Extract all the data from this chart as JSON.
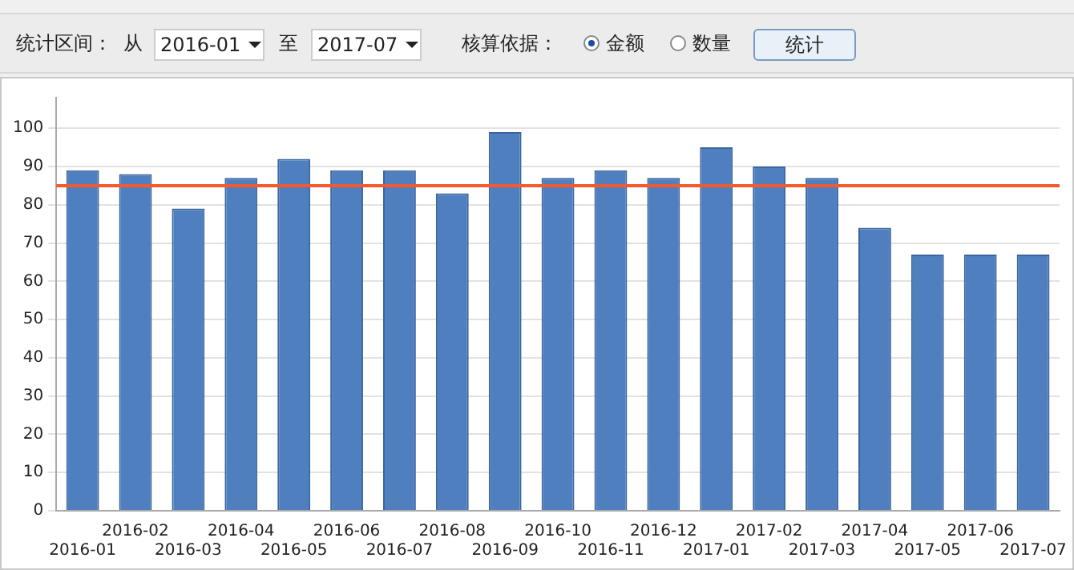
{
  "chart_data": {
    "type": "bar",
    "categories": [
      "2016-01",
      "2016-02",
      "2016-03",
      "2016-04",
      "2016-05",
      "2016-06",
      "2016-07",
      "2016-08",
      "2016-09",
      "2016-10",
      "2016-11",
      "2016-12",
      "2017-01",
      "2017-02",
      "2017-03",
      "2017-04",
      "2017-05",
      "2017-06",
      "2017-07"
    ],
    "values": [
      89,
      88,
      79,
      87,
      92,
      89,
      89,
      83,
      99,
      87,
      89,
      87,
      95,
      90,
      87,
      74,
      67,
      67,
      67
    ],
    "color": "#4f7fbf",
    "ylim": [
      0,
      108
    ],
    "yticks": [
      0,
      10,
      20,
      30,
      40,
      50,
      60,
      70,
      80,
      90,
      100
    ],
    "grid": "y",
    "ref_lines": [
      {
        "axis": "y",
        "value": 85,
        "color": "#f45a2e"
      }
    ],
    "annotations": [
      "统计区间：",
      "从",
      "2016-01",
      "至",
      "2017-07",
      "核算依据：",
      "金额",
      "数量",
      "统计"
    ]
  }
}
